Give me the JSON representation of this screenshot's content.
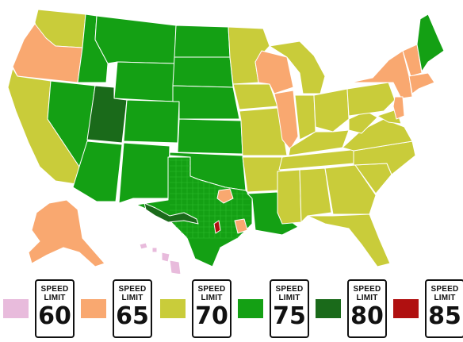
{
  "colors": {
    "60": "#e8bbdc",
    "65": "#f9a870",
    "70": "#c9cc3a",
    "75": "#14a014",
    "80": "#1a6a1a",
    "85": "#b01010",
    "border": "#ffffff"
  },
  "legend": [
    {
      "sign_top_1": "SPEED",
      "sign_top_2": "LIMIT",
      "value": "60",
      "color_key": "60"
    },
    {
      "sign_top_1": "SPEED",
      "sign_top_2": "LIMIT",
      "value": "65",
      "color_key": "65"
    },
    {
      "sign_top_1": "SPEED",
      "sign_top_2": "LIMIT",
      "value": "70",
      "color_key": "70"
    },
    {
      "sign_top_1": "SPEED",
      "sign_top_2": "LIMIT",
      "value": "75",
      "color_key": "75"
    },
    {
      "sign_top_1": "SPEED",
      "sign_top_2": "LIMIT",
      "value": "80",
      "color_key": "80"
    },
    {
      "sign_top_1": "SPEED",
      "sign_top_2": "LIMIT",
      "value": "85",
      "color_key": "85"
    }
  ]
}
